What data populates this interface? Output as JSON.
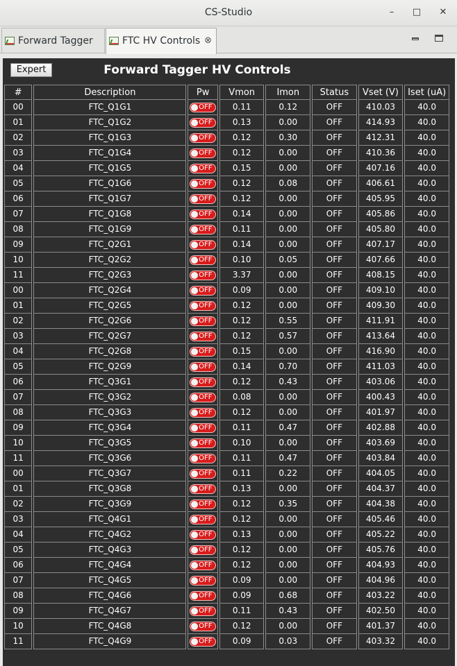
{
  "window": {
    "title": "CS-Studio"
  },
  "tabs": [
    {
      "label": "Forward Tagger"
    },
    {
      "label": "FTC HV Controls"
    }
  ],
  "panel": {
    "expert_label": "Expert",
    "heading": "Forward Tagger HV Controls"
  },
  "table": {
    "headers": [
      "#",
      "Description",
      "Pw",
      "Vmon",
      "Imon",
      "Status",
      "Vset (V)",
      "Iset (uA)"
    ],
    "rows": [
      [
        "00",
        "FTC_Q1G1",
        "OFF",
        "0.11",
        "0.12",
        "OFF",
        "410.03",
        "40.0"
      ],
      [
        "01",
        "FTC_Q1G2",
        "OFF",
        "0.13",
        "0.00",
        "OFF",
        "414.93",
        "40.0"
      ],
      [
        "02",
        "FTC_Q1G3",
        "OFF",
        "0.12",
        "0.30",
        "OFF",
        "412.31",
        "40.0"
      ],
      [
        "03",
        "FTC_Q1G4",
        "OFF",
        "0.12",
        "0.00",
        "OFF",
        "410.36",
        "40.0"
      ],
      [
        "04",
        "FTC_Q1G5",
        "OFF",
        "0.15",
        "0.00",
        "OFF",
        "407.16",
        "40.0"
      ],
      [
        "05",
        "FTC_Q1G6",
        "OFF",
        "0.12",
        "0.08",
        "OFF",
        "406.61",
        "40.0"
      ],
      [
        "06",
        "FTC_Q1G7",
        "OFF",
        "0.12",
        "0.00",
        "OFF",
        "405.95",
        "40.0"
      ],
      [
        "07",
        "FTC_Q1G8",
        "OFF",
        "0.14",
        "0.00",
        "OFF",
        "405.86",
        "40.0"
      ],
      [
        "08",
        "FTC_Q1G9",
        "OFF",
        "0.11",
        "0.00",
        "OFF",
        "405.80",
        "40.0"
      ],
      [
        "09",
        "FTC_Q2G1",
        "OFF",
        "0.14",
        "0.00",
        "OFF",
        "407.17",
        "40.0"
      ],
      [
        "10",
        "FTC_Q2G2",
        "OFF",
        "0.10",
        "0.05",
        "OFF",
        "407.66",
        "40.0"
      ],
      [
        "11",
        "FTC_Q2G3",
        "OFF",
        "3.37",
        "0.00",
        "OFF",
        "408.15",
        "40.0"
      ],
      [
        "00",
        "FTC_Q2G4",
        "OFF",
        "0.09",
        "0.00",
        "OFF",
        "409.10",
        "40.0"
      ],
      [
        "01",
        "FTC_Q2G5",
        "OFF",
        "0.12",
        "0.00",
        "OFF",
        "409.30",
        "40.0"
      ],
      [
        "02",
        "FTC_Q2G6",
        "OFF",
        "0.12",
        "0.55",
        "OFF",
        "411.91",
        "40.0"
      ],
      [
        "03",
        "FTC_Q2G7",
        "OFF",
        "0.12",
        "0.57",
        "OFF",
        "413.64",
        "40.0"
      ],
      [
        "04",
        "FTC_Q2G8",
        "OFF",
        "0.15",
        "0.00",
        "OFF",
        "416.90",
        "40.0"
      ],
      [
        "05",
        "FTC_Q2G9",
        "OFF",
        "0.14",
        "0.70",
        "OFF",
        "411.03",
        "40.0"
      ],
      [
        "06",
        "FTC_Q3G1",
        "OFF",
        "0.12",
        "0.43",
        "OFF",
        "403.06",
        "40.0"
      ],
      [
        "07",
        "FTC_Q3G2",
        "OFF",
        "0.08",
        "0.00",
        "OFF",
        "400.43",
        "40.0"
      ],
      [
        "08",
        "FTC_Q3G3",
        "OFF",
        "0.12",
        "0.00",
        "OFF",
        "401.97",
        "40.0"
      ],
      [
        "09",
        "FTC_Q3G4",
        "OFF",
        "0.11",
        "0.47",
        "OFF",
        "402.88",
        "40.0"
      ],
      [
        "10",
        "FTC_Q3G5",
        "OFF",
        "0.10",
        "0.00",
        "OFF",
        "403.69",
        "40.0"
      ],
      [
        "11",
        "FTC_Q3G6",
        "OFF",
        "0.11",
        "0.47",
        "OFF",
        "403.84",
        "40.0"
      ],
      [
        "00",
        "FTC_Q3G7",
        "OFF",
        "0.11",
        "0.22",
        "OFF",
        "404.05",
        "40.0"
      ],
      [
        "01",
        "FTC_Q3G8",
        "OFF",
        "0.13",
        "0.00",
        "OFF",
        "404.37",
        "40.0"
      ],
      [
        "02",
        "FTC_Q3G9",
        "OFF",
        "0.12",
        "0.35",
        "OFF",
        "404.38",
        "40.0"
      ],
      [
        "03",
        "FTC_Q4G1",
        "OFF",
        "0.12",
        "0.00",
        "OFF",
        "405.46",
        "40.0"
      ],
      [
        "04",
        "FTC_Q4G2",
        "OFF",
        "0.13",
        "0.00",
        "OFF",
        "405.22",
        "40.0"
      ],
      [
        "05",
        "FTC_Q4G3",
        "OFF",
        "0.12",
        "0.00",
        "OFF",
        "405.76",
        "40.0"
      ],
      [
        "06",
        "FTC_Q4G4",
        "OFF",
        "0.12",
        "0.00",
        "OFF",
        "404.93",
        "40.0"
      ],
      [
        "07",
        "FTC_Q4G5",
        "OFF",
        "0.09",
        "0.00",
        "OFF",
        "404.96",
        "40.0"
      ],
      [
        "08",
        "FTC_Q4G6",
        "OFF",
        "0.09",
        "0.68",
        "OFF",
        "403.22",
        "40.0"
      ],
      [
        "09",
        "FTC_Q4G7",
        "OFF",
        "0.11",
        "0.43",
        "OFF",
        "402.50",
        "40.0"
      ],
      [
        "10",
        "FTC_Q4G8",
        "OFF",
        "0.12",
        "0.00",
        "OFF",
        "401.37",
        "40.0"
      ],
      [
        "11",
        "FTC_Q4G9",
        "OFF",
        "0.09",
        "0.03",
        "OFF",
        "403.32",
        "40.0"
      ]
    ]
  },
  "colors": {
    "panel_bg": "#2e2e2e",
    "toggle_off": "#d81c1c",
    "text": "#ffffff"
  },
  "icons": {
    "tab_icon": "chart-icon",
    "tab_close": "close-icon",
    "window_min": "minimize-icon",
    "window_max": "maximize-icon",
    "window_close": "close-icon"
  }
}
